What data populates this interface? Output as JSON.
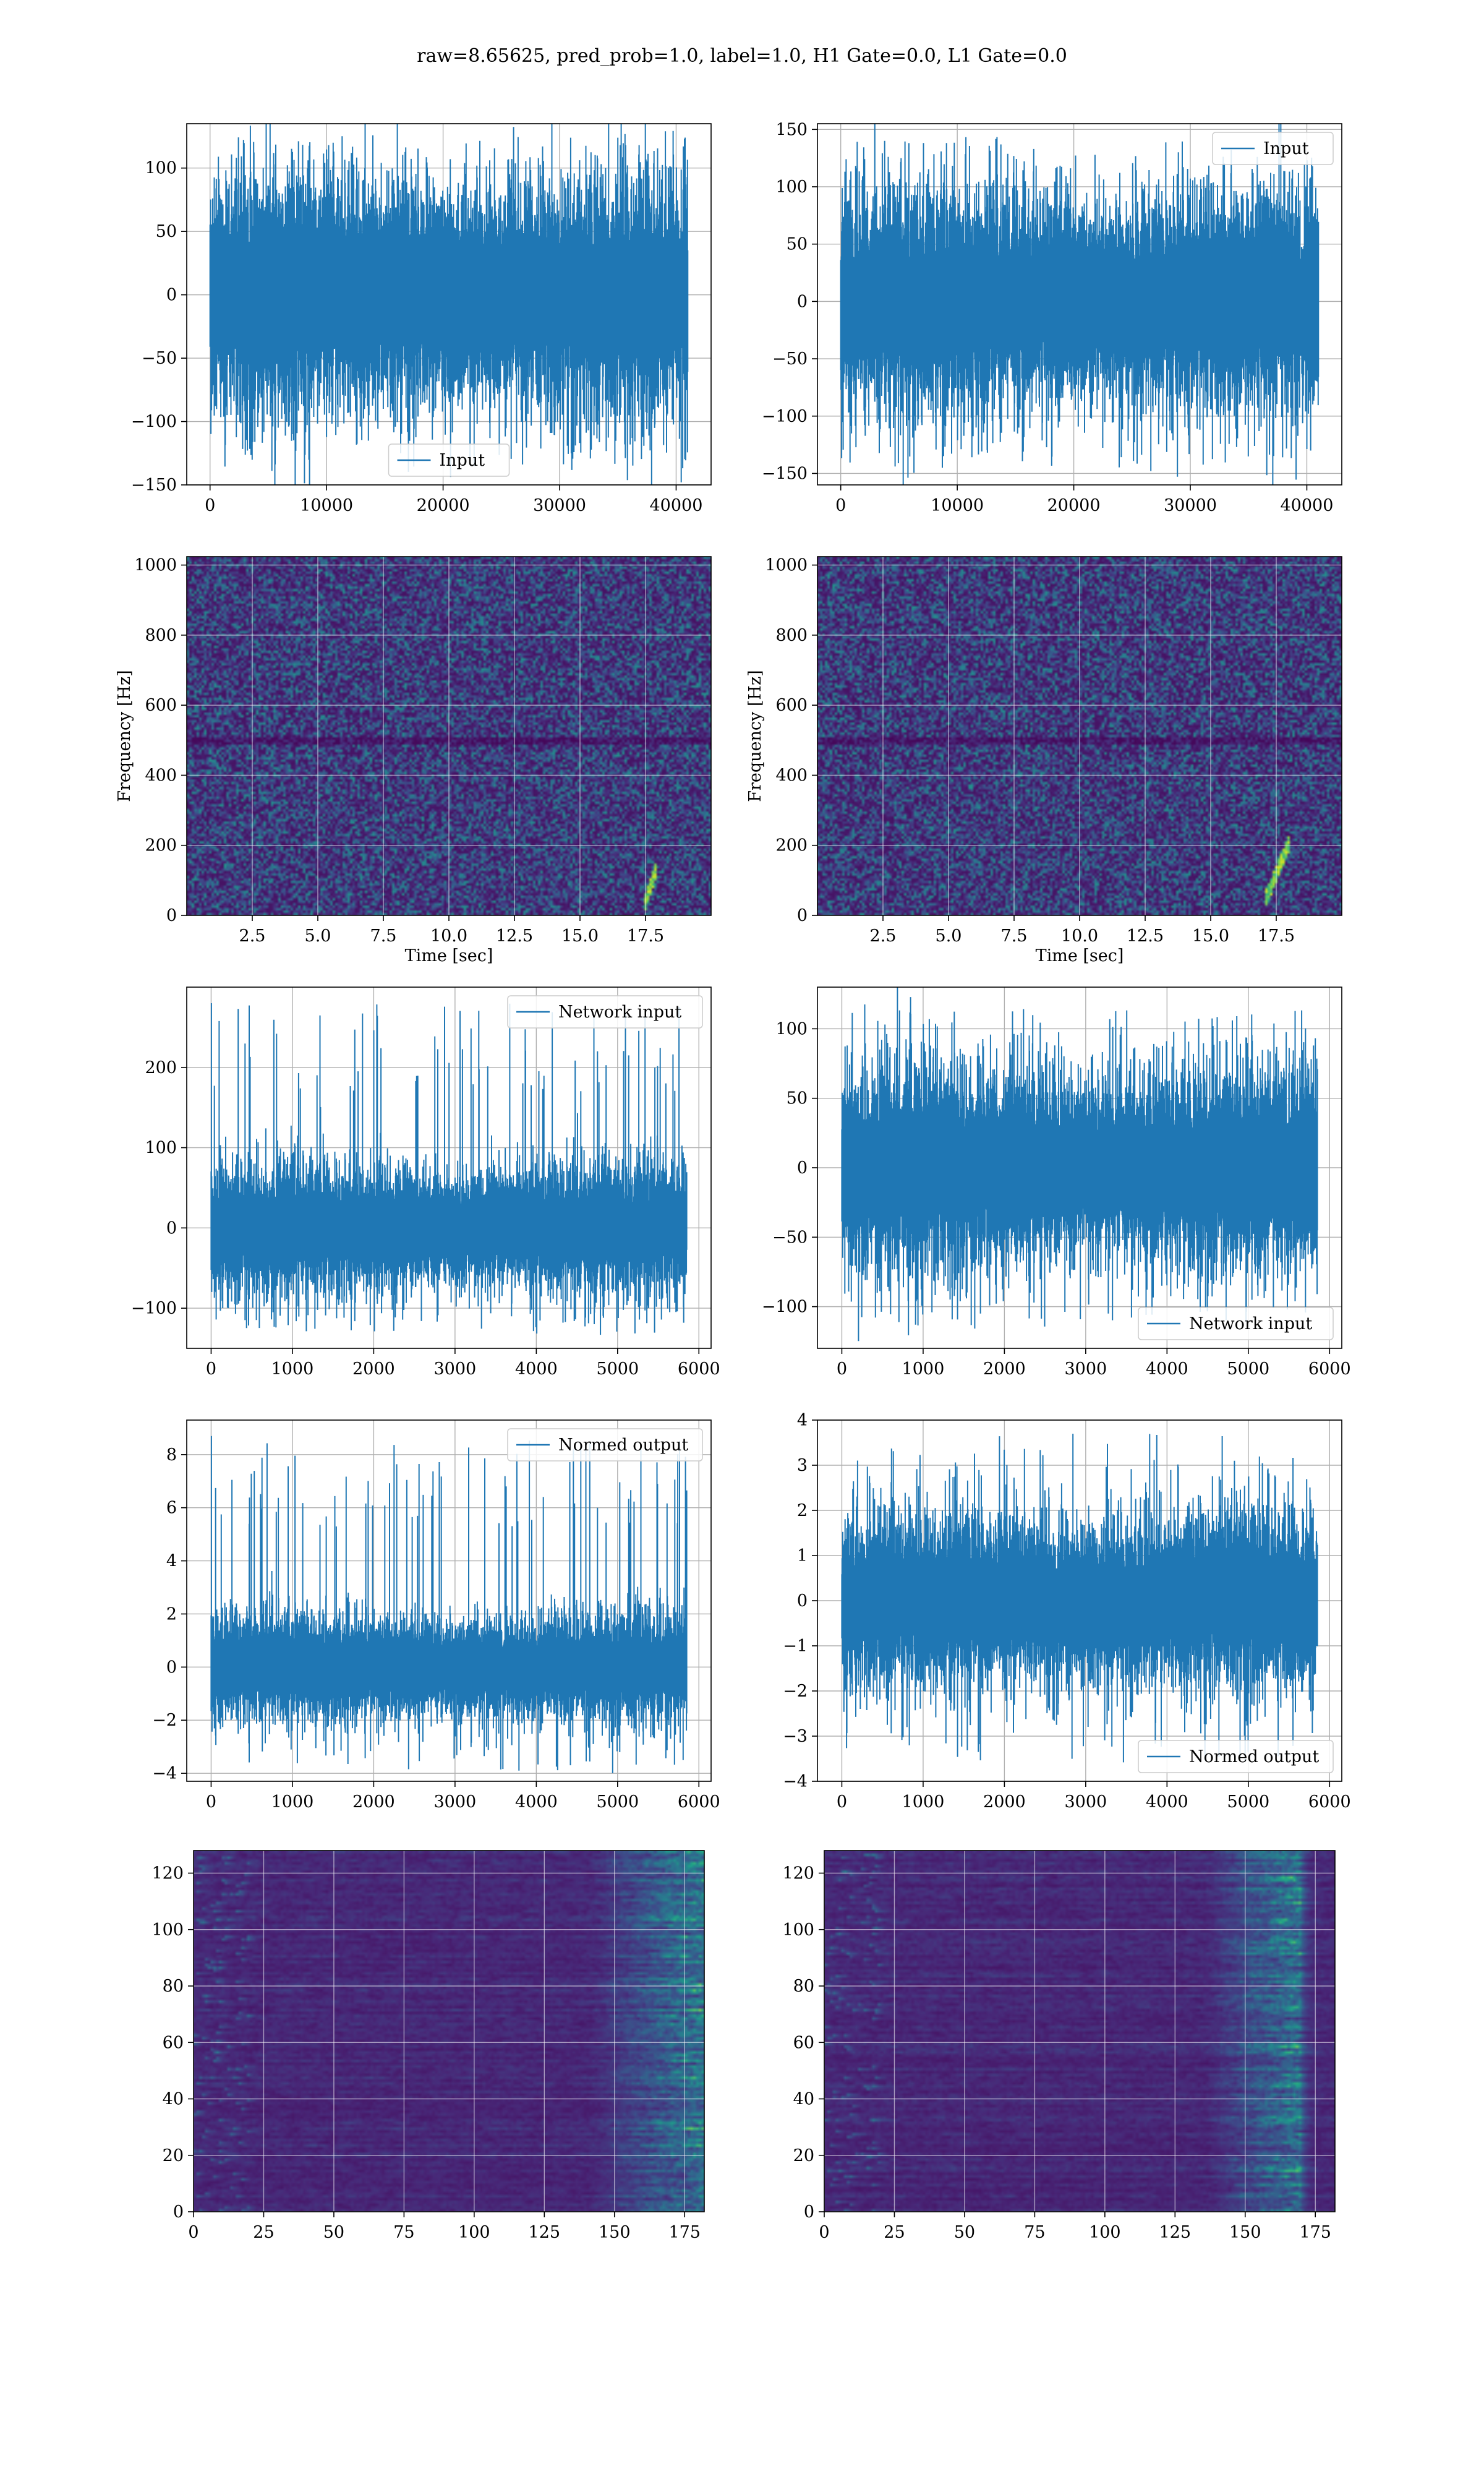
{
  "figure": {
    "title": "raw=8.65625, pred_prob=1.0, label=1.0, H1 Gate=0.0, L1 Gate=0.0"
  },
  "colors": {
    "line": "#1f77b4",
    "grid": "#b0b0b0",
    "viridis_low": "#440154",
    "viridis_mid": "#31688e",
    "viridis_green": "#35b779",
    "viridis_high": "#fde725"
  },
  "chart_data": [
    {
      "id": "h1-input",
      "type": "line",
      "series": [
        {
          "name": "Input",
          "n_points": 41000,
          "amplitude_typical": 65,
          "min": -140,
          "max": 125
        }
      ],
      "legend": "bottom-center",
      "xlim": [
        -2000,
        43000
      ],
      "ylim": [
        -150,
        135
      ],
      "xticks": [
        0,
        10000,
        20000,
        30000,
        40000
      ],
      "xtick_labels": [
        "0",
        "10000",
        "20000",
        "30000",
        "40000"
      ],
      "yticks": [
        -150,
        -100,
        -50,
        0,
        50,
        100
      ],
      "ytick_labels": [
        "−150",
        "−100",
        "−50",
        "0",
        "50",
        "100"
      ],
      "xlabel": "",
      "ylabel": "",
      "grid": true
    },
    {
      "id": "l1-input",
      "type": "line",
      "series": [
        {
          "name": "Input",
          "n_points": 41000,
          "amplitude_typical": 65,
          "min": -148,
          "max": 142
        }
      ],
      "legend": "top-right",
      "xlim": [
        -2000,
        43000
      ],
      "ylim": [
        -160,
        155
      ],
      "xticks": [
        0,
        10000,
        20000,
        30000,
        40000
      ],
      "xtick_labels": [
        "0",
        "10000",
        "20000",
        "30000",
        "40000"
      ],
      "yticks": [
        -150,
        -100,
        -50,
        0,
        50,
        100,
        150
      ],
      "ytick_labels": [
        "−150",
        "−100",
        "−50",
        "0",
        "50",
        "100",
        "150"
      ],
      "xlabel": "",
      "ylabel": "",
      "grid": true
    },
    {
      "id": "h1-spectrogram",
      "type": "heatmap",
      "xlim": [
        0,
        20
      ],
      "ylim": [
        0,
        1024
      ],
      "xticks": [
        2.5,
        5.0,
        7.5,
        10.0,
        12.5,
        15.0,
        17.5
      ],
      "xtick_labels": [
        "2.5",
        "5.0",
        "7.5",
        "10.0",
        "12.5",
        "15.0",
        "17.5"
      ],
      "yticks": [
        0,
        200,
        400,
        600,
        800,
        1000
      ],
      "ytick_labels": [
        "0",
        "200",
        "400",
        "600",
        "800",
        "1000"
      ],
      "xlabel": "Time [sec]",
      "ylabel": "Frequency [Hz]",
      "grid": true,
      "chirp": {
        "t": [
          17.4,
          17.9
        ],
        "f": [
          30,
          140
        ]
      }
    },
    {
      "id": "l1-spectrogram",
      "type": "heatmap",
      "xlim": [
        0,
        20
      ],
      "ylim": [
        0,
        1024
      ],
      "xticks": [
        2.5,
        5.0,
        7.5,
        10.0,
        12.5,
        15.0,
        17.5
      ],
      "xtick_labels": [
        "2.5",
        "5.0",
        "7.5",
        "10.0",
        "12.5",
        "15.0",
        "17.5"
      ],
      "yticks": [
        0,
        200,
        400,
        600,
        800,
        1000
      ],
      "ytick_labels": [
        "0",
        "200",
        "400",
        "600",
        "800",
        "1000"
      ],
      "xlabel": "Time [sec]",
      "ylabel": "Frequency [Hz]",
      "grid": true,
      "chirp": {
        "t": [
          17.0,
          18.0
        ],
        "f": [
          40,
          220
        ]
      }
    },
    {
      "id": "h1-network-input",
      "type": "line",
      "series": [
        {
          "name": "Network input",
          "n_points": 5850,
          "amplitude_typical": 55,
          "min": -130,
          "max": 280,
          "spike_at": 0
        }
      ],
      "legend": "top-right",
      "xlim": [
        -300,
        6150
      ],
      "ylim": [
        -150,
        300
      ],
      "xticks": [
        0,
        1000,
        2000,
        3000,
        4000,
        5000,
        6000
      ],
      "xtick_labels": [
        "0",
        "1000",
        "2000",
        "3000",
        "4000",
        "5000",
        "6000"
      ],
      "yticks": [
        -100,
        0,
        100,
        200
      ],
      "ytick_labels": [
        "−100",
        "0",
        "100",
        "200"
      ],
      "xlabel": "",
      "ylabel": "",
      "grid": true
    },
    {
      "id": "l1-network-input",
      "type": "line",
      "series": [
        {
          "name": "Network input",
          "n_points": 5850,
          "amplitude_typical": 50,
          "min": -115,
          "max": 117
        }
      ],
      "legend": "bottom-right",
      "xlim": [
        -300,
        6150
      ],
      "ylim": [
        -130,
        130
      ],
      "xticks": [
        0,
        1000,
        2000,
        3000,
        4000,
        5000,
        6000
      ],
      "xtick_labels": [
        "0",
        "1000",
        "2000",
        "3000",
        "4000",
        "5000",
        "6000"
      ],
      "yticks": [
        -100,
        -50,
        0,
        50,
        100
      ],
      "ytick_labels": [
        "−100",
        "−50",
        "0",
        "50",
        "100"
      ],
      "xlabel": "",
      "ylabel": "",
      "grid": true
    },
    {
      "id": "h1-normed-output",
      "type": "line",
      "series": [
        {
          "name": "Normed output",
          "n_points": 5850,
          "amplitude_typical": 1.4,
          "min": -4,
          "max": 8.7,
          "spike_at": 0
        }
      ],
      "legend": "top-right",
      "xlim": [
        -300,
        6150
      ],
      "ylim": [
        -4.3,
        9.3
      ],
      "xticks": [
        0,
        1000,
        2000,
        3000,
        4000,
        5000,
        6000
      ],
      "xtick_labels": [
        "0",
        "1000",
        "2000",
        "3000",
        "4000",
        "5000",
        "6000"
      ],
      "yticks": [
        -4,
        -2,
        0,
        2,
        4,
        6,
        8
      ],
      "ytick_labels": [
        "−4",
        "−2",
        "0",
        "2",
        "4",
        "6",
        "8"
      ],
      "xlabel": "",
      "ylabel": "",
      "grid": true
    },
    {
      "id": "l1-normed-output",
      "type": "line",
      "series": [
        {
          "name": "Normed output",
          "n_points": 5850,
          "amplitude_typical": 1.3,
          "min": -3.6,
          "max": 3.7
        }
      ],
      "legend": "bottom-right",
      "xlim": [
        -300,
        6150
      ],
      "ylim": [
        -4,
        4
      ],
      "xticks": [
        0,
        1000,
        2000,
        3000,
        4000,
        5000,
        6000
      ],
      "xtick_labels": [
        "0",
        "1000",
        "2000",
        "3000",
        "4000",
        "5000",
        "6000"
      ],
      "yticks": [
        -4,
        -3,
        -2,
        -1,
        0,
        1,
        2,
        3,
        4
      ],
      "ytick_labels": [
        "−4",
        "−3",
        "−2",
        "−1",
        "0",
        "1",
        "2",
        "3",
        "4"
      ],
      "xlabel": "",
      "ylabel": "",
      "grid": true
    },
    {
      "id": "h1-feature-map",
      "type": "heatmap",
      "rows": 128,
      "cols": 182,
      "xlim": [
        0,
        182
      ],
      "ylim": [
        128,
        0
      ],
      "xticks": [
        0,
        25,
        50,
        75,
        100,
        125,
        150,
        175
      ],
      "xtick_labels": [
        "0",
        "25",
        "50",
        "75",
        "100",
        "125",
        "150",
        "175"
      ],
      "yticks": [
        0,
        20,
        40,
        60,
        80,
        100,
        120
      ],
      "ytick_labels": [
        "0",
        "20",
        "40",
        "60",
        "80",
        "100",
        "120"
      ],
      "xlabel": "",
      "ylabel": "",
      "grid": true,
      "active_cols": [
        140,
        182
      ]
    },
    {
      "id": "l1-feature-map",
      "type": "heatmap",
      "rows": 128,
      "cols": 182,
      "xlim": [
        0,
        182
      ],
      "ylim": [
        128,
        0
      ],
      "xticks": [
        0,
        25,
        50,
        75,
        100,
        125,
        150,
        175
      ],
      "xtick_labels": [
        "0",
        "25",
        "50",
        "75",
        "100",
        "125",
        "150",
        "175"
      ],
      "yticks": [
        0,
        20,
        40,
        60,
        80,
        100,
        120
      ],
      "ytick_labels": [
        "0",
        "20",
        "40",
        "60",
        "80",
        "100",
        "120"
      ],
      "xlabel": "",
      "ylabel": "",
      "grid": true,
      "active_cols": [
        135,
        170
      ]
    }
  ]
}
